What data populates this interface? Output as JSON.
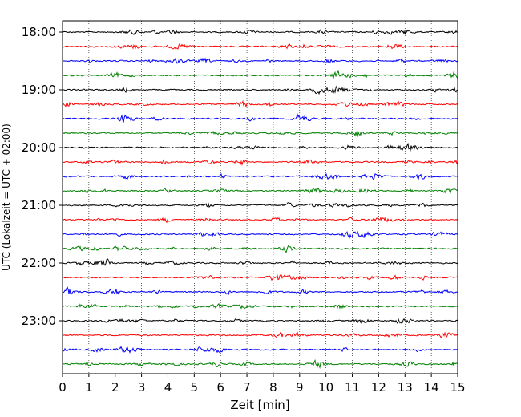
{
  "chart_data": {
    "type": "line",
    "title": "",
    "xlabel": "Zeit  [min]",
    "ylabel": "UTC (Lokalzeit = UTC + 02:00)",
    "xlim": [
      0,
      15
    ],
    "x_ticks": [
      "0",
      "1",
      "2",
      "3",
      "4",
      "5",
      "6",
      "7",
      "8",
      "9",
      "10",
      "11",
      "12",
      "13",
      "14",
      "15"
    ],
    "y_ticks": [
      {
        "label": "18:00",
        "hour_offset": 0
      },
      {
        "label": "19:00",
        "hour_offset": 1
      },
      {
        "label": "20:00",
        "hour_offset": 2
      },
      {
        "label": "21:00",
        "hour_offset": 3
      },
      {
        "label": "22:00",
        "hour_offset": 4
      },
      {
        "label": "23:00",
        "hour_offset": 5
      }
    ],
    "traces_per_hour": 4,
    "trace_count": 24,
    "trace_colors": [
      "#000000",
      "#ff0000",
      "#0000ff",
      "#008000"
    ],
    "grid": "vertical dotted at each minute",
    "legend": "none"
  }
}
